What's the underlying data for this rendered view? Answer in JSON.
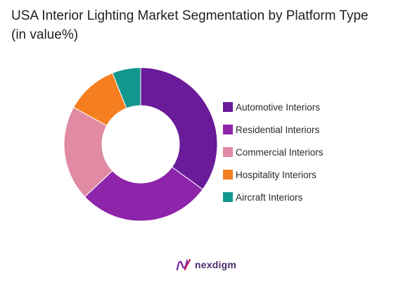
{
  "chart_data": {
    "type": "pie",
    "title": "USA Interior Lighting Market Segmentation by Platform Type (in value%)",
    "categories": [
      "Automotive Interiors",
      "Residential Interiors",
      "Commercial Interiors",
      "Hospitality Interiors",
      "Aircraft Interiors"
    ],
    "values": [
      35,
      28,
      20,
      11,
      6
    ],
    "colors": [
      "#6a1b9a",
      "#8e24aa",
      "#e08aa4",
      "#f57f20",
      "#12978f"
    ],
    "donut": true,
    "legend_position": "right"
  },
  "brand": {
    "name": "nexdigm",
    "logo_icon": "nexdigm-logo-icon"
  }
}
